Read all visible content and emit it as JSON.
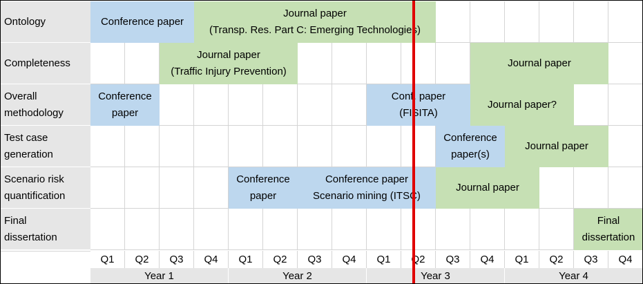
{
  "rows": [
    {
      "label": "Ontology"
    },
    {
      "label": "Completeness"
    },
    {
      "label": "Overall\nmethodology"
    },
    {
      "label": "Test case\ngeneration"
    },
    {
      "label": "Scenario risk\nquantification"
    },
    {
      "label": "Final\ndissertation"
    }
  ],
  "bars": [
    {
      "row": 0,
      "start": 0,
      "end": 3,
      "kind": "conference",
      "text": "Conference paper"
    },
    {
      "row": 0,
      "start": 3,
      "end": 10,
      "kind": "journal",
      "text": "Journal paper\n(Transp. Res. Part C: Emerging Technologies)"
    },
    {
      "row": 1,
      "start": 2,
      "end": 6,
      "kind": "journal",
      "text": "Journal paper\n(Traffic Injury Prevention)"
    },
    {
      "row": 1,
      "start": 11,
      "end": 15,
      "kind": "journal",
      "text": "Journal paper"
    },
    {
      "row": 2,
      "start": 0,
      "end": 2,
      "kind": "conference",
      "text": "Conference\npaper"
    },
    {
      "row": 2,
      "start": 8,
      "end": 11,
      "kind": "conference",
      "text": "Conf. paper\n(FISITA)"
    },
    {
      "row": 2,
      "start": 11,
      "end": 14,
      "kind": "journal",
      "text": "Journal paper?"
    },
    {
      "row": 3,
      "start": 10,
      "end": 12,
      "kind": "conference",
      "text": "Conference\npaper(s)"
    },
    {
      "row": 3,
      "start": 12,
      "end": 15,
      "kind": "journal",
      "text": "Journal paper"
    },
    {
      "row": 4,
      "start": 4,
      "end": 6,
      "kind": "conference",
      "text": "Conference\npaper"
    },
    {
      "row": 4,
      "start": 6,
      "end": 10,
      "kind": "conference",
      "text": "Conference paper\nScenario mining (ITSC)"
    },
    {
      "row": 4,
      "start": 10,
      "end": 13,
      "kind": "journal",
      "text": "Journal paper"
    },
    {
      "row": 5,
      "start": 14,
      "end": 16,
      "kind": "journal",
      "text": "Final\ndissertation"
    }
  ],
  "quarters": [
    "Q1",
    "Q2",
    "Q3",
    "Q4",
    "Q1",
    "Q2",
    "Q3",
    "Q4",
    "Q1",
    "Q2",
    "Q3",
    "Q4",
    "Q1",
    "Q2",
    "Q3",
    "Q4"
  ],
  "years": [
    "Year 1",
    "Year 2",
    "Year 3",
    "Year 4"
  ],
  "current_quarter_index": 9.35,
  "colors": {
    "conference": "#bdd7ee",
    "journal": "#c6e0b4",
    "now_line": "#e00000",
    "label_bg": "#e6e6e6"
  }
}
